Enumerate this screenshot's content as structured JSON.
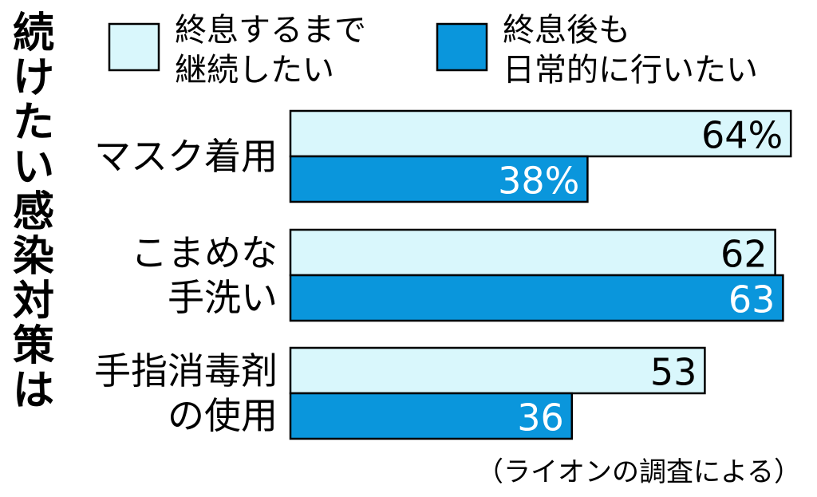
{
  "chart_data": {
    "type": "bar",
    "orientation": "horizontal",
    "title": "続けたい感染対策は",
    "categories": [
      [
        "マスク着用"
      ],
      [
        "こまめな",
        "手洗い"
      ],
      [
        "手指消毒剤",
        "の使用"
      ]
    ],
    "series": [
      {
        "name": [
          "終息するまで",
          "継続したい"
        ],
        "values": [
          64,
          62,
          53
        ],
        "labels": [
          "64%",
          "62",
          "53"
        ],
        "color": "#d9f7fc",
        "text_color": "#000000"
      },
      {
        "name": [
          "終息後も",
          "日常的に行いたい"
        ],
        "values": [
          38,
          63,
          36
        ],
        "labels": [
          "38%",
          "63",
          "36"
        ],
        "color": "#0a96dc",
        "text_color": "#ffffff"
      }
    ],
    "xlim": [
      0,
      100
    ],
    "grid": false,
    "legend_position": "top",
    "source": "（ライオンの調査による）"
  }
}
